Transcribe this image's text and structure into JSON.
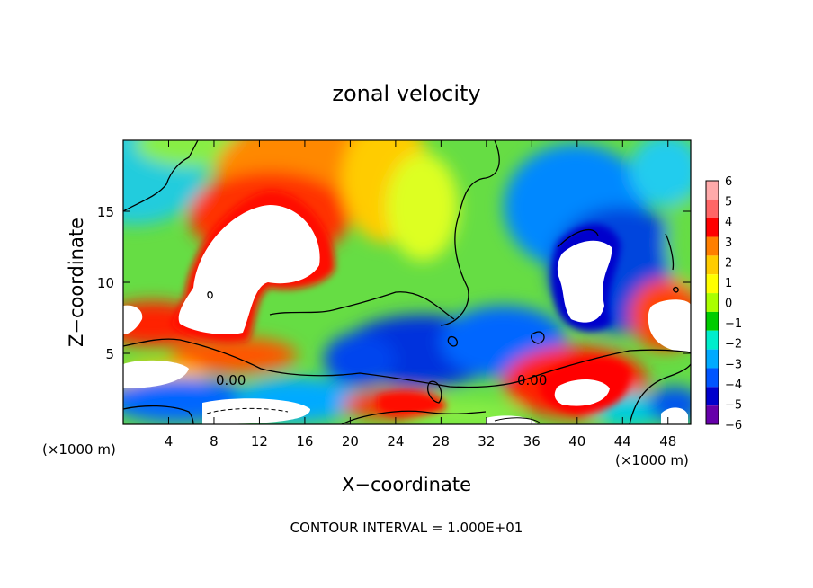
{
  "chart_data": {
    "type": "heatmap",
    "title": "zonal velocity",
    "xlabel": "X−coordinate",
    "ylabel": "Z−coordinate",
    "x_unit_left": "(×1000 m)",
    "x_unit_right": "(×1000 m)",
    "xlim": [
      0,
      50
    ],
    "ylim": [
      0,
      20
    ],
    "x_ticks": [
      4,
      8,
      12,
      16,
      20,
      24,
      28,
      32,
      36,
      40,
      44,
      48
    ],
    "y_ticks": [
      5,
      10,
      15
    ],
    "contour_label": "0.00",
    "footer": "CONTOUR INTERVAL = 1.000E+01",
    "colorbar": {
      "labels": [
        "6",
        "5",
        "4",
        "3",
        "2",
        "1",
        "0",
        "−1",
        "−2",
        "−3",
        "−4",
        "−5",
        "−6"
      ],
      "colors": [
        "#ffaaaa",
        "#ff6666",
        "#ff0000",
        "#ff7f00",
        "#ffcc00",
        "#ffff00",
        "#aaff00",
        "#00cc00",
        "#00eecc",
        "#00aaff",
        "#0055ff",
        "#0000cc",
        "#6600aa"
      ]
    },
    "grid": false
  }
}
